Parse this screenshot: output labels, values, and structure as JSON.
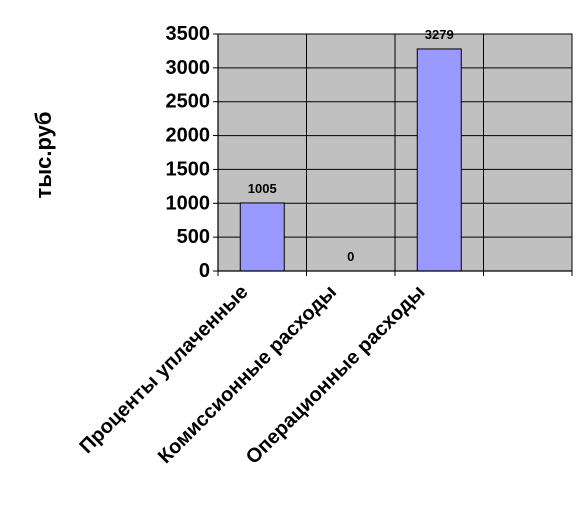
{
  "chart_data": {
    "type": "bar",
    "title": "",
    "ylabel": "тыс.руб",
    "xlabel": "",
    "categories": [
      "Проценты уплаченные",
      "Комиссионные расходы",
      "Операционные расходы",
      ""
    ],
    "values": [
      1005,
      0,
      3279,
      null
    ],
    "data_labels": [
      "1005",
      "0",
      "3279",
      ""
    ],
    "ylim": [
      0,
      3500
    ],
    "yticks": [
      0,
      500,
      1000,
      1500,
      2000,
      2500,
      3000,
      3500
    ],
    "grid": true,
    "legend": "none",
    "colors": {
      "plot_background": "#c0c0c0",
      "bar_fill": "#9999ff",
      "bar_stroke": "#000000",
      "grid": "#000000"
    }
  }
}
